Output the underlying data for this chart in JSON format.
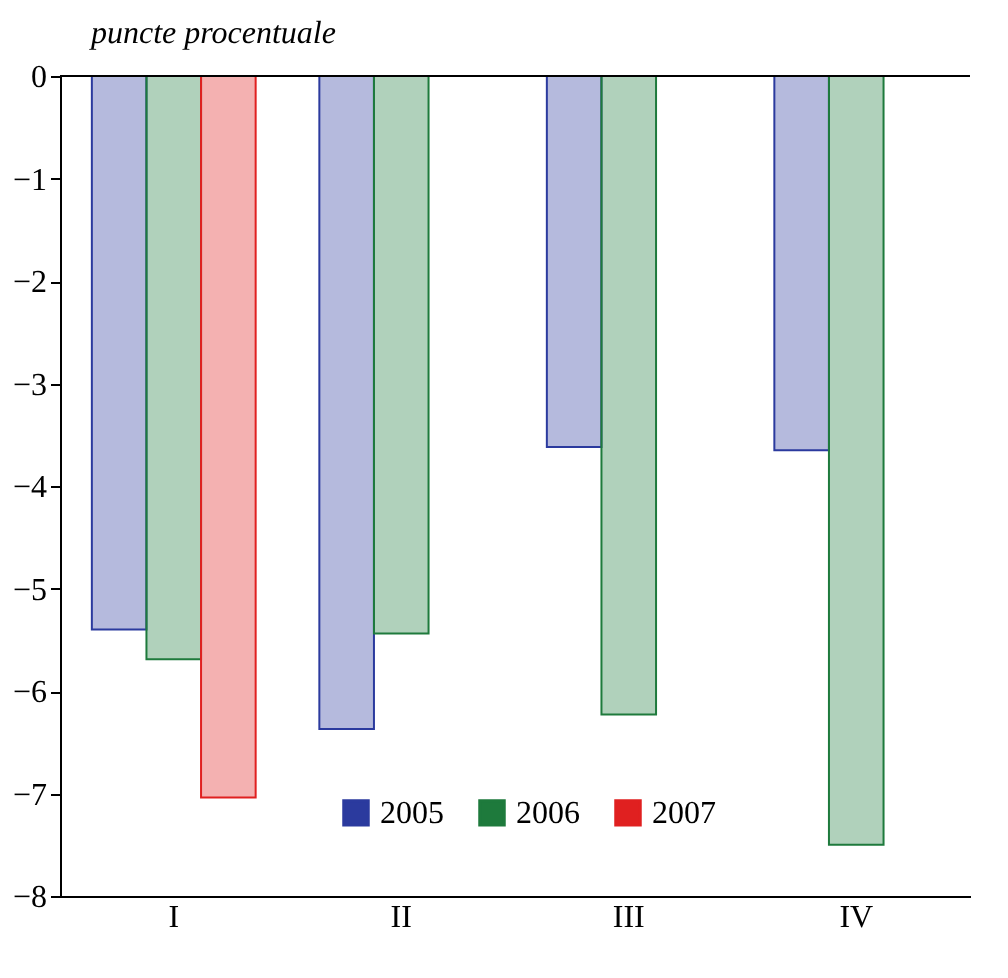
{
  "chart_data": {
    "type": "bar",
    "ylabel": "puncte procentuale",
    "categories": [
      "I",
      "II",
      "III",
      "IV"
    ],
    "series": [
      {
        "name": "2005",
        "color": "#2b3a9e",
        "values": [
          -5.4,
          -6.37,
          -3.62,
          -3.65
        ]
      },
      {
        "name": "2006",
        "color": "#1e7a3c",
        "values": [
          -5.69,
          -5.44,
          -6.23,
          -7.5
        ]
      },
      {
        "name": "2007",
        "color": "#e02020",
        "values": [
          -7.04,
          null,
          null,
          null
        ]
      }
    ],
    "ylim": [
      -8,
      0
    ],
    "yticks": [
      -8,
      -7,
      -6,
      -5,
      -4,
      -3,
      -2,
      -1,
      0
    ],
    "grid": false,
    "legend": "bottom"
  }
}
